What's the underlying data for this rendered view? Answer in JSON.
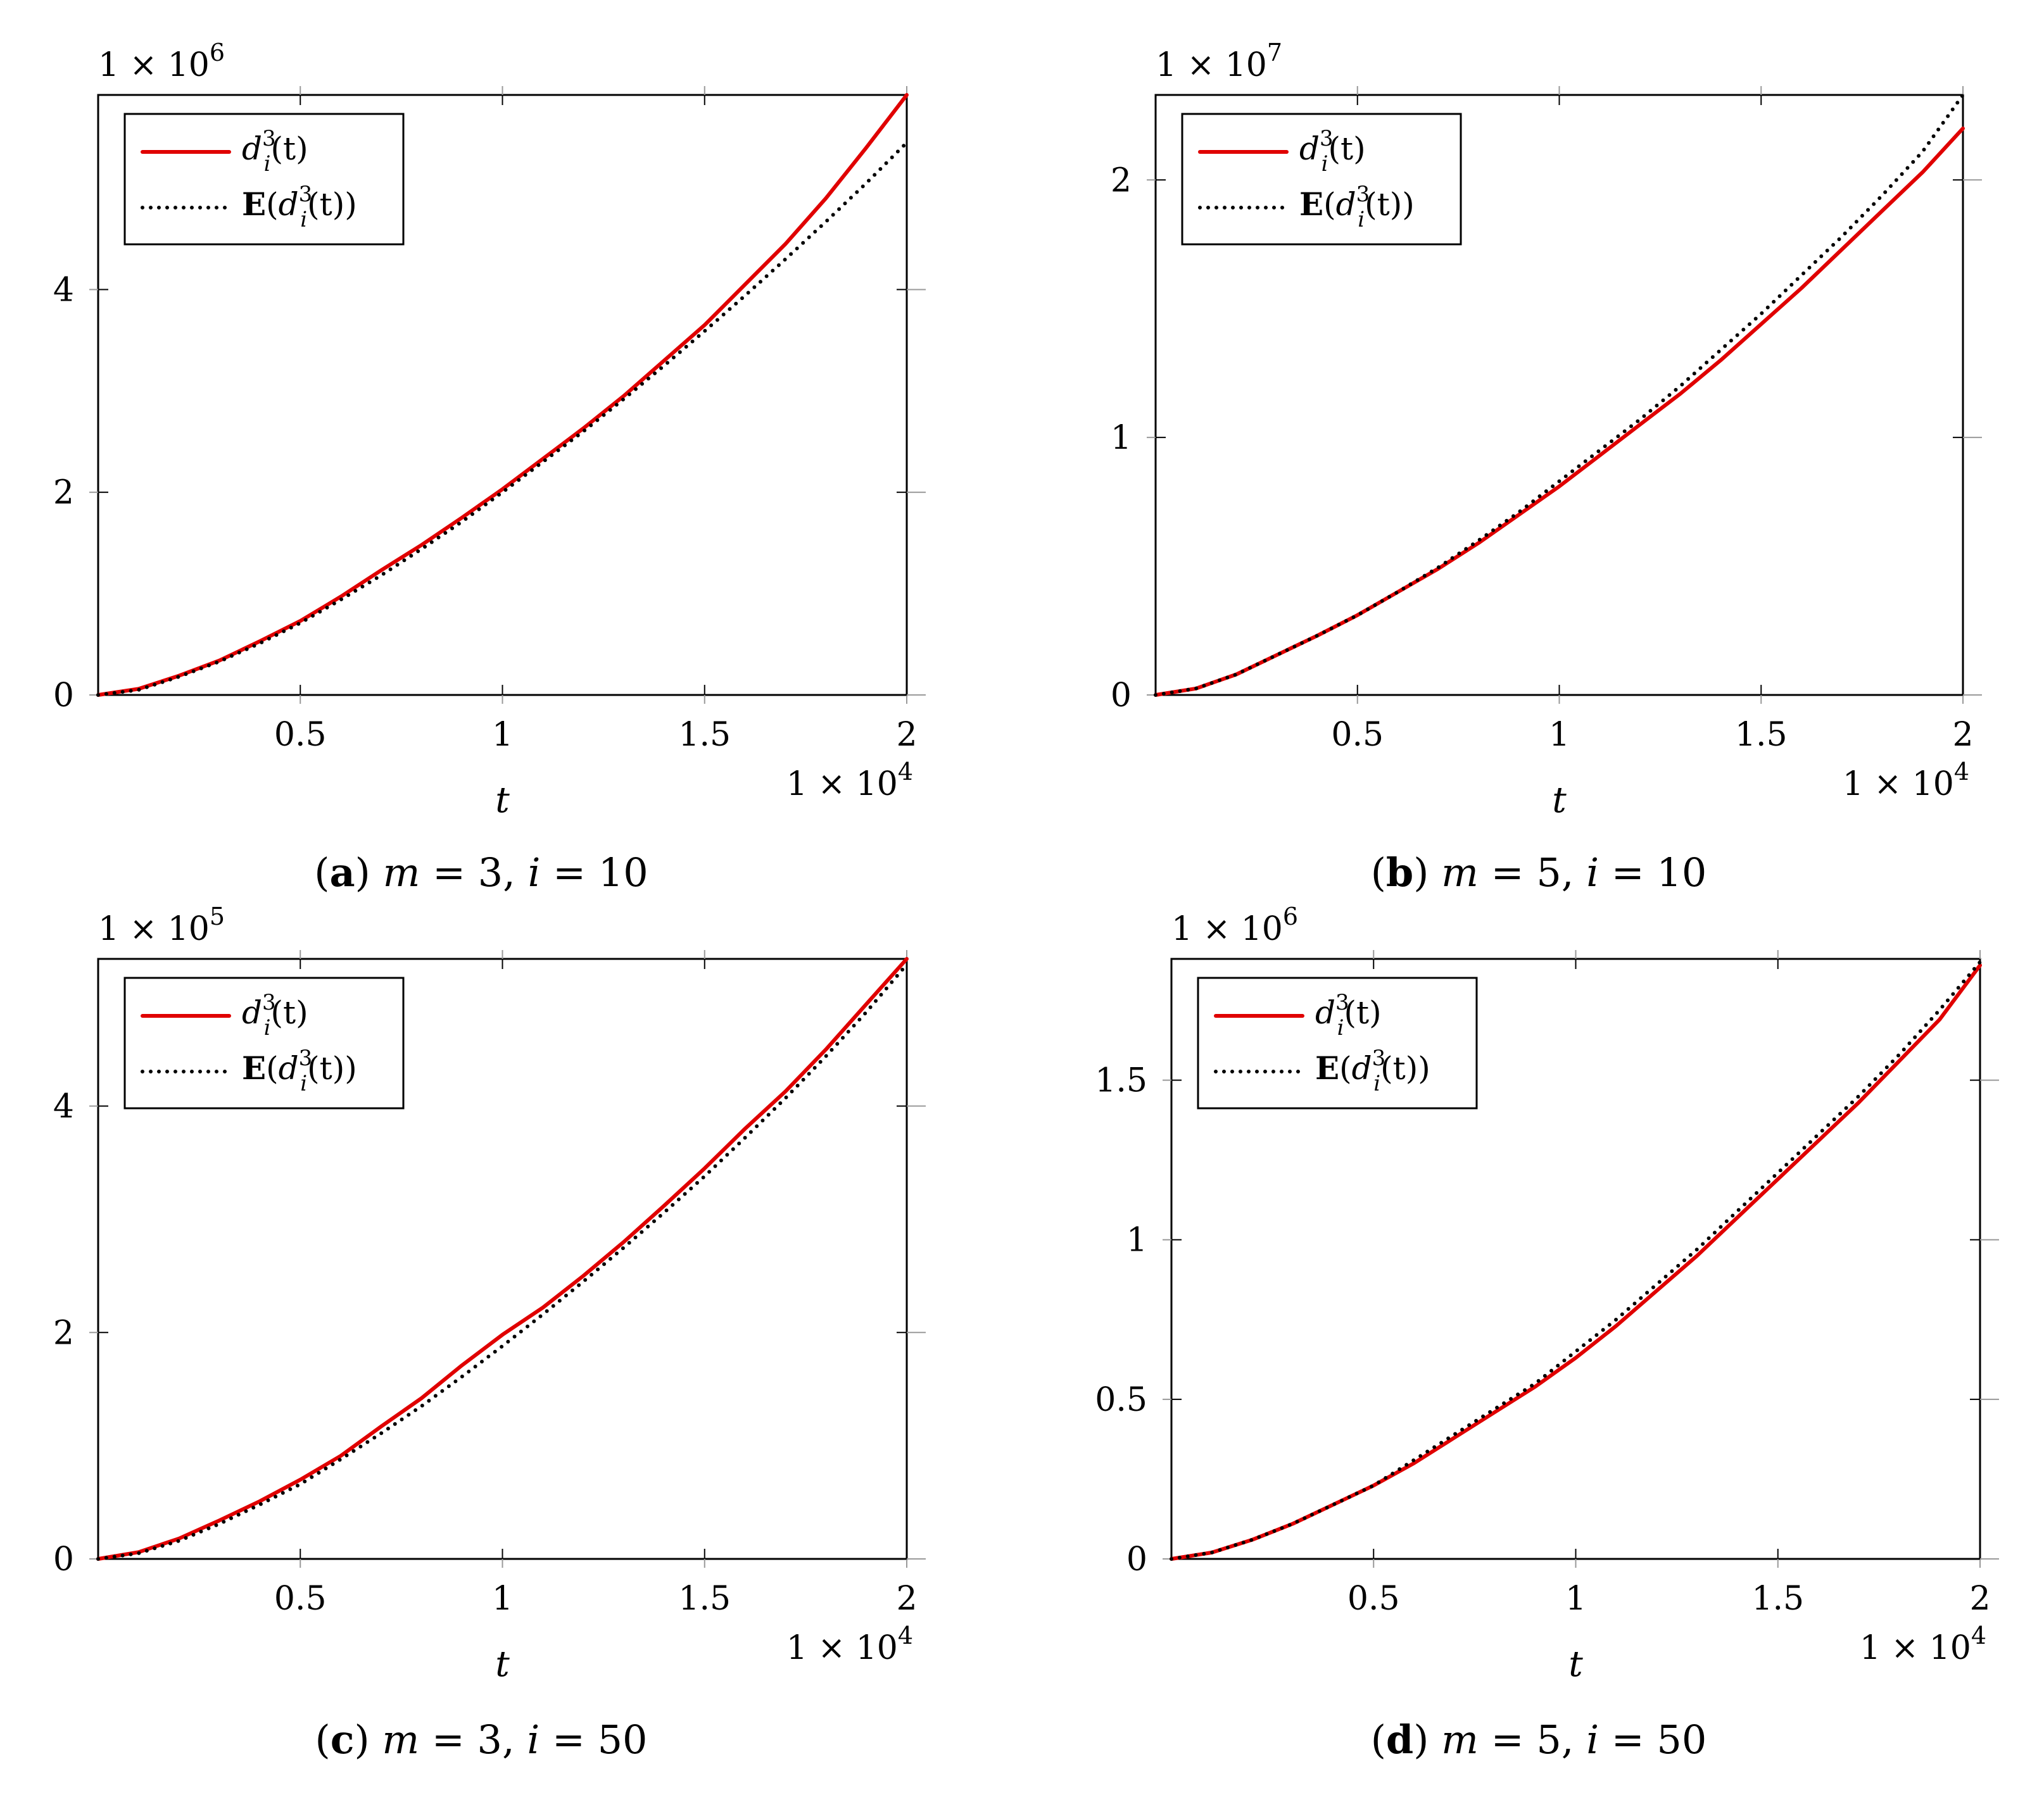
{
  "chart_data": [
    {
      "type": "line",
      "caption": {
        "letter": "a",
        "text": "m = 3, i = 10"
      },
      "xlabel": "t",
      "ylabel": "",
      "x_multiplier": "1 × 10^4",
      "y_multiplier": "1 × 10^6",
      "xlim": [
        0,
        2
      ],
      "ylim": [
        0,
        5.92
      ],
      "x_ticks": [
        0.5,
        1,
        1.5,
        2
      ],
      "x_tick_labels": [
        "0.5",
        "1",
        "1.5",
        "2"
      ],
      "y_ticks": [
        0,
        2,
        4
      ],
      "y_tick_labels": [
        "0",
        "2",
        "4"
      ],
      "grid": false,
      "legend_position": "top-left",
      "series": [
        {
          "name": "d_i^3(t)",
          "color": "#e00000",
          "style": "solid",
          "x": [
            0,
            0.1,
            0.2,
            0.3,
            0.4,
            0.5,
            0.6,
            0.7,
            0.8,
            0.9,
            1.0,
            1.1,
            1.2,
            1.3,
            1.4,
            1.5,
            1.6,
            1.7,
            1.8,
            1.9,
            2.0
          ],
          "y": [
            0,
            0.06,
            0.19,
            0.34,
            0.53,
            0.73,
            0.97,
            1.23,
            1.48,
            1.75,
            2.03,
            2.33,
            2.63,
            2.95,
            3.3,
            3.65,
            4.05,
            4.45,
            4.9,
            5.4,
            5.92
          ]
        },
        {
          "name": "E(d_i^3(t))",
          "color": "#000000",
          "style": "dotted",
          "x": [
            0,
            0.1,
            0.2,
            0.3,
            0.4,
            0.5,
            0.6,
            0.7,
            0.8,
            0.9,
            1.0,
            1.1,
            1.2,
            1.3,
            1.4,
            1.5,
            1.6,
            1.7,
            1.8,
            1.9,
            2.0
          ],
          "y": [
            0,
            0.05,
            0.18,
            0.33,
            0.51,
            0.71,
            0.94,
            1.18,
            1.44,
            1.71,
            2.0,
            2.3,
            2.6,
            2.92,
            3.25,
            3.59,
            3.94,
            4.3,
            4.67,
            5.05,
            5.45
          ]
        }
      ]
    },
    {
      "type": "line",
      "caption": {
        "letter": "b",
        "text": "m = 5, i = 10"
      },
      "xlabel": "t",
      "ylabel": "",
      "x_multiplier": "1 × 10^4",
      "y_multiplier": "1 × 10^7",
      "xlim": [
        0,
        2
      ],
      "ylim": [
        0,
        2.33
      ],
      "x_ticks": [
        0.5,
        1,
        1.5,
        2
      ],
      "x_tick_labels": [
        "0.5",
        "1",
        "1.5",
        "2"
      ],
      "y_ticks": [
        0,
        1,
        2
      ],
      "y_tick_labels": [
        "0",
        "1",
        "2"
      ],
      "grid": false,
      "legend_position": "top-left",
      "series": [
        {
          "name": "d_i^3(t)",
          "color": "#e00000",
          "style": "solid",
          "x": [
            0,
            0.1,
            0.2,
            0.3,
            0.4,
            0.5,
            0.6,
            0.7,
            0.8,
            0.9,
            1.0,
            1.1,
            1.2,
            1.3,
            1.4,
            1.5,
            1.6,
            1.7,
            1.8,
            1.9,
            2.0
          ],
          "y": [
            0,
            0.025,
            0.08,
            0.155,
            0.23,
            0.31,
            0.4,
            0.49,
            0.59,
            0.7,
            0.81,
            0.93,
            1.05,
            1.17,
            1.3,
            1.44,
            1.58,
            1.73,
            1.88,
            2.03,
            2.2
          ]
        },
        {
          "name": "E(d_i^3(t))",
          "color": "#000000",
          "style": "dotted",
          "x": [
            0,
            0.1,
            0.2,
            0.3,
            0.4,
            0.5,
            0.6,
            0.7,
            0.8,
            0.9,
            1.0,
            1.1,
            1.2,
            1.3,
            1.4,
            1.5,
            1.6,
            1.7,
            1.8,
            1.9,
            2.0
          ],
          "y": [
            0,
            0.025,
            0.08,
            0.155,
            0.23,
            0.31,
            0.4,
            0.495,
            0.6,
            0.71,
            0.83,
            0.95,
            1.07,
            1.2,
            1.34,
            1.48,
            1.63,
            1.78,
            1.94,
            2.11,
            2.33
          ]
        }
      ]
    },
    {
      "type": "line",
      "caption": {
        "letter": "c",
        "text": "m = 3, i = 50"
      },
      "xlabel": "t",
      "ylabel": "",
      "x_multiplier": "1 × 10^4",
      "y_multiplier": "1 × 10^5",
      "xlim": [
        0,
        2
      ],
      "ylim": [
        0,
        5.3
      ],
      "x_ticks": [
        0.5,
        1,
        1.5,
        2
      ],
      "x_tick_labels": [
        "0.5",
        "1",
        "1.5",
        "2"
      ],
      "y_ticks": [
        0,
        2,
        4
      ],
      "y_tick_labels": [
        "0",
        "2",
        "4"
      ],
      "grid": false,
      "legend_position": "top-left",
      "series": [
        {
          "name": "d_i^3(t)",
          "color": "#e00000",
          "style": "solid",
          "x": [
            0,
            0.1,
            0.2,
            0.3,
            0.4,
            0.5,
            0.6,
            0.7,
            0.8,
            0.9,
            1.0,
            1.1,
            1.2,
            1.3,
            1.4,
            1.5,
            1.6,
            1.7,
            1.8,
            1.9,
            2.0
          ],
          "y": [
            0,
            0.06,
            0.18,
            0.34,
            0.51,
            0.7,
            0.91,
            1.17,
            1.42,
            1.71,
            1.98,
            2.22,
            2.5,
            2.8,
            3.12,
            3.45,
            3.8,
            4.13,
            4.5,
            4.9,
            5.3
          ]
        },
        {
          "name": "E(d_i^3(t))",
          "color": "#000000",
          "style": "dotted",
          "x": [
            0,
            0.1,
            0.2,
            0.3,
            0.4,
            0.5,
            0.6,
            0.7,
            0.8,
            0.9,
            1.0,
            1.1,
            1.2,
            1.3,
            1.4,
            1.5,
            1.6,
            1.7,
            1.8,
            1.9,
            2.0
          ],
          "y": [
            0,
            0.05,
            0.16,
            0.31,
            0.48,
            0.66,
            0.88,
            1.11,
            1.35,
            1.61,
            1.88,
            2.16,
            2.45,
            2.75,
            3.06,
            3.38,
            3.72,
            4.07,
            4.44,
            4.83,
            5.25
          ]
        }
      ]
    },
    {
      "type": "line",
      "caption": {
        "letter": "d",
        "text": "m = 5, i = 50"
      },
      "xlabel": "t",
      "ylabel": "",
      "x_multiplier": "1 × 10^4",
      "y_multiplier": "1 × 10^6",
      "xlim": [
        0,
        2
      ],
      "ylim": [
        0,
        1.88
      ],
      "x_ticks": [
        0.5,
        1,
        1.5,
        2
      ],
      "x_tick_labels": [
        "0.5",
        "1",
        "1.5",
        "2"
      ],
      "y_ticks": [
        0,
        0.5,
        1,
        1.5
      ],
      "y_tick_labels": [
        "0",
        "0.5",
        "1",
        "1.5"
      ],
      "grid": false,
      "legend_position": "top-left",
      "series": [
        {
          "name": "d_i^3(t)",
          "color": "#e00000",
          "style": "solid",
          "x": [
            0,
            0.1,
            0.2,
            0.3,
            0.4,
            0.5,
            0.6,
            0.7,
            0.8,
            0.9,
            1.0,
            1.1,
            1.2,
            1.3,
            1.4,
            1.5,
            1.6,
            1.7,
            1.8,
            1.9,
            2.0
          ],
          "y": [
            0,
            0.02,
            0.06,
            0.11,
            0.17,
            0.23,
            0.3,
            0.38,
            0.46,
            0.54,
            0.63,
            0.73,
            0.84,
            0.95,
            1.07,
            1.19,
            1.31,
            1.43,
            1.56,
            1.69,
            1.86
          ]
        },
        {
          "name": "E(d_i^3(t))",
          "color": "#000000",
          "style": "dotted",
          "x": [
            0,
            0.1,
            0.2,
            0.3,
            0.4,
            0.5,
            0.6,
            0.7,
            0.8,
            0.9,
            1.0,
            1.1,
            1.2,
            1.3,
            1.4,
            1.5,
            1.6,
            1.7,
            1.8,
            1.9,
            2.0
          ],
          "y": [
            0,
            0.02,
            0.06,
            0.11,
            0.17,
            0.23,
            0.31,
            0.39,
            0.47,
            0.55,
            0.65,
            0.75,
            0.86,
            0.97,
            1.09,
            1.21,
            1.33,
            1.45,
            1.58,
            1.72,
            1.87
          ]
        }
      ]
    }
  ]
}
